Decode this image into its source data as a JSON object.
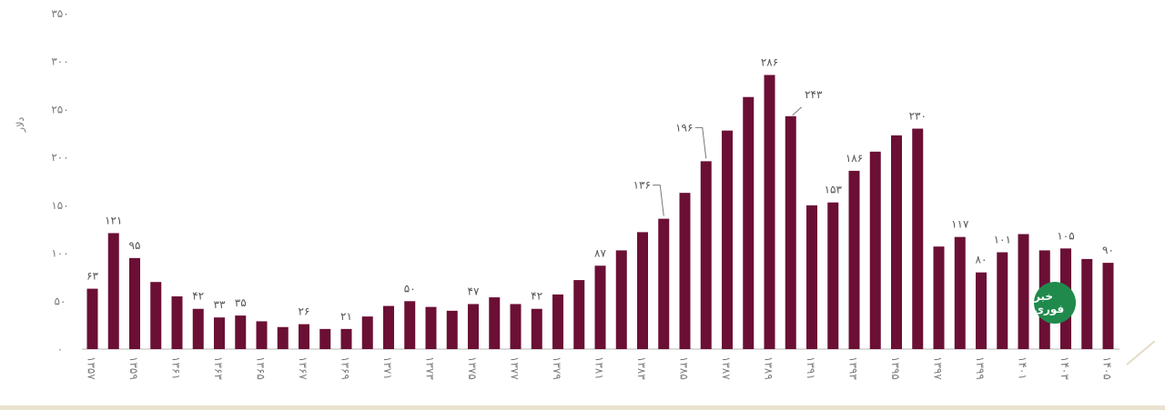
{
  "chart_data": {
    "type": "bar",
    "title": "",
    "xlabel": "",
    "ylabel": "دلار",
    "ylim": [
      0,
      350
    ],
    "yticks": [
      0,
      50,
      100,
      150,
      200,
      250,
      300,
      350
    ],
    "ytick_labels": [
      "۰",
      "۵۰",
      "۱۰۰",
      "۱۵۰",
      "۲۰۰",
      "۲۵۰",
      "۳۰۰",
      "۳۵۰"
    ],
    "grid": false,
    "bar_color": "#6b0f35",
    "categories": [
      "۱۳۵۷",
      "۱۳۵۸",
      "۱۳۵۹",
      "۱۳۶۰",
      "۱۳۶۱",
      "۱۳۶۲",
      "۱۳۶۳",
      "۱۳۶۴",
      "۱۳۶۵",
      "۱۳۶۶",
      "۱۳۶۷",
      "۱۳۶۸",
      "۱۳۶۹",
      "۱۳۷۰",
      "۱۳۷۱",
      "۱۳۷۲",
      "۱۳۷۳",
      "۱۳۷۴",
      "۱۳۷۵",
      "۱۳۷۶",
      "۱۳۷۷",
      "۱۳۷۸",
      "۱۳۷۹",
      "۱۳۸۰",
      "۱۳۸۱",
      "۱۳۸۲",
      "۱۳۸۳",
      "۱۳۸۴",
      "۱۳۸۵",
      "۱۳۸۶",
      "۱۳۸۷",
      "۱۳۸۸",
      "۱۳۸۹",
      "۱۳۹۰",
      "۱۳۹۱",
      "۱۳۹۲",
      "۱۳۹۳",
      "۱۳۹۴",
      "۱۳۹۵",
      "۱۳۹۶",
      "۱۳۹۷",
      "۱۳۹۸",
      "۱۳۹۹",
      "۱۴۰۰",
      "۱۴۰۱",
      "۱۴۰۲",
      "۱۴۰۳",
      "۱۴۰۴",
      "۱۴۰۵"
    ],
    "visible_tick_labels": [
      "۱۳۵۷",
      "۱۳۵۹",
      "۱۳۶۱",
      "۱۳۶۳",
      "۱۳۶۵",
      "۱۳۶۷",
      "۱۳۶۹",
      "۱۳۷۱",
      "۱۳۷۳",
      "۱۳۷۵",
      "۱۳۷۷",
      "۱۳۷۹",
      "۱۳۸۱",
      "۱۳۸۳",
      "۱۳۸۵",
      "۱۳۸۷",
      "۱۳۸۹",
      "۱۳۹۱",
      "۱۳۹۳",
      "۱۳۹۵",
      "۱۳۹۷",
      "۱۳۹۹",
      "۱۴۰۱",
      "۱۴۰۳",
      "۱۴۰۵"
    ],
    "values": [
      63,
      121,
      95,
      70,
      55,
      42,
      33,
      35,
      29,
      23,
      26,
      21,
      21,
      34,
      45,
      50,
      44,
      40,
      47,
      54,
      47,
      42,
      57,
      72,
      87,
      103,
      122,
      136,
      163,
      196,
      228,
      263,
      286,
      243,
      150,
      153,
      186,
      206,
      223,
      230,
      107,
      117,
      80,
      101,
      120,
      103,
      105,
      94,
      90
    ],
    "data_labels": [
      {
        "index": 0,
        "text": "۶۳"
      },
      {
        "index": 1,
        "text": "۱۲۱"
      },
      {
        "index": 2,
        "text": "۹۵"
      },
      {
        "index": 5,
        "text": "۴۲"
      },
      {
        "index": 6,
        "text": "۳۳"
      },
      {
        "index": 7,
        "text": "۳۵"
      },
      {
        "index": 10,
        "text": "۲۶"
      },
      {
        "index": 12,
        "text": "۲۱"
      },
      {
        "index": 15,
        "text": "۵۰"
      },
      {
        "index": 18,
        "text": "۴۷"
      },
      {
        "index": 21,
        "text": "۴۲"
      },
      {
        "index": 24,
        "text": "۸۷"
      },
      {
        "index": 27,
        "text": "۱۳۶",
        "leader": true
      },
      {
        "index": 29,
        "text": "۱۹۶",
        "leader": true
      },
      {
        "index": 32,
        "text": "۲۸۶"
      },
      {
        "index": 33,
        "text": "۲۴۳",
        "leader": true
      },
      {
        "index": 35,
        "text": "۱۵۳"
      },
      {
        "index": 36,
        "text": "۱۸۶"
      },
      {
        "index": 39,
        "text": "۲۳۰"
      },
      {
        "index": 41,
        "text": "۱۱۷"
      },
      {
        "index": 42,
        "text": "۸۰"
      },
      {
        "index": 43,
        "text": "۱۰۱"
      },
      {
        "index": 46,
        "text": "۱۰۵"
      },
      {
        "index": 48,
        "text": "۹۰"
      }
    ]
  },
  "watermark": {
    "logo_text": "خبر فوری",
    "logo_color": "#1f8a4c"
  }
}
